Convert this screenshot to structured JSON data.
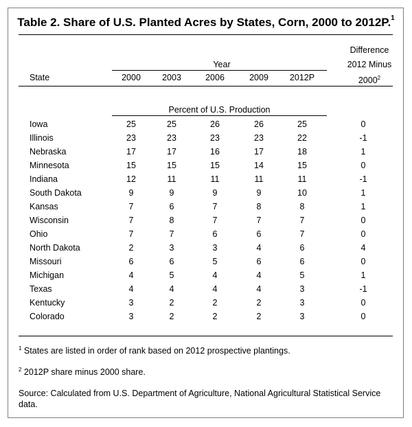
{
  "title": "Table 2.  Share of U.S. Planted Acres by States, Corn, 2000 to 2012P.",
  "title_footnote": "1",
  "header": {
    "state": "State",
    "year_group": "Year",
    "years": [
      "2000",
      "2003",
      "2006",
      "2009",
      "2012P"
    ],
    "difference_line1": "Difference",
    "difference_line2": "2012 Minus",
    "difference_line3": "2000",
    "difference_footnote": "2",
    "unit": "Percent of U.S. Production"
  },
  "rows": [
    {
      "state": "Iowa",
      "y2000": "25",
      "y2003": "25",
      "y2006": "26",
      "y2009": "26",
      "y2012": "25",
      "diff": "0"
    },
    {
      "state": "Illinois",
      "y2000": "23",
      "y2003": "23",
      "y2006": "23",
      "y2009": "23",
      "y2012": "22",
      "diff": "-1"
    },
    {
      "state": "Nebraska",
      "y2000": "17",
      "y2003": "17",
      "y2006": "16",
      "y2009": "17",
      "y2012": "18",
      "diff": "1"
    },
    {
      "state": "Minnesota",
      "y2000": "15",
      "y2003": "15",
      "y2006": "15",
      "y2009": "14",
      "y2012": "15",
      "diff": "0"
    },
    {
      "state": "Indiana",
      "y2000": "12",
      "y2003": "11",
      "y2006": "11",
      "y2009": "11",
      "y2012": "11",
      "diff": "-1"
    },
    {
      "state": "South Dakota",
      "y2000": "9",
      "y2003": "9",
      "y2006": "9",
      "y2009": "9",
      "y2012": "10",
      "diff": "1"
    },
    {
      "state": "Kansas",
      "y2000": "7",
      "y2003": "6",
      "y2006": "7",
      "y2009": "8",
      "y2012": "8",
      "diff": "1"
    },
    {
      "state": "Wisconsin",
      "y2000": "7",
      "y2003": "8",
      "y2006": "7",
      "y2009": "7",
      "y2012": "7",
      "diff": "0"
    },
    {
      "state": "Ohio",
      "y2000": "7",
      "y2003": "7",
      "y2006": "6",
      "y2009": "6",
      "y2012": "7",
      "diff": "0"
    },
    {
      "state": "North Dakota",
      "y2000": "2",
      "y2003": "3",
      "y2006": "3",
      "y2009": "4",
      "y2012": "6",
      "diff": "4"
    },
    {
      "state": "Missouri",
      "y2000": "6",
      "y2003": "6",
      "y2006": "5",
      "y2009": "6",
      "y2012": "6",
      "diff": "0"
    },
    {
      "state": "Michigan",
      "y2000": "4",
      "y2003": "5",
      "y2006": "4",
      "y2009": "4",
      "y2012": "5",
      "diff": "1"
    },
    {
      "state": "Texas",
      "y2000": "4",
      "y2003": "4",
      "y2006": "4",
      "y2009": "4",
      "y2012": "3",
      "diff": "-1"
    },
    {
      "state": "Kentucky",
      "y2000": "3",
      "y2003": "2",
      "y2006": "2",
      "y2009": "2",
      "y2012": "3",
      "diff": "0"
    },
    {
      "state": "Colorado",
      "y2000": "3",
      "y2003": "2",
      "y2006": "2",
      "y2009": "2",
      "y2012": "3",
      "diff": "0"
    }
  ],
  "footnotes": {
    "note1_mark": "1",
    "note1": " States are listed in order of rank based on 2012 prospective plantings.",
    "note2_mark": "2",
    "note2": " 2012P share minus 2000 share.",
    "source": "Source:  Calculated from U.S. Department of Agriculture, National Agricultural Statistical Service data."
  }
}
